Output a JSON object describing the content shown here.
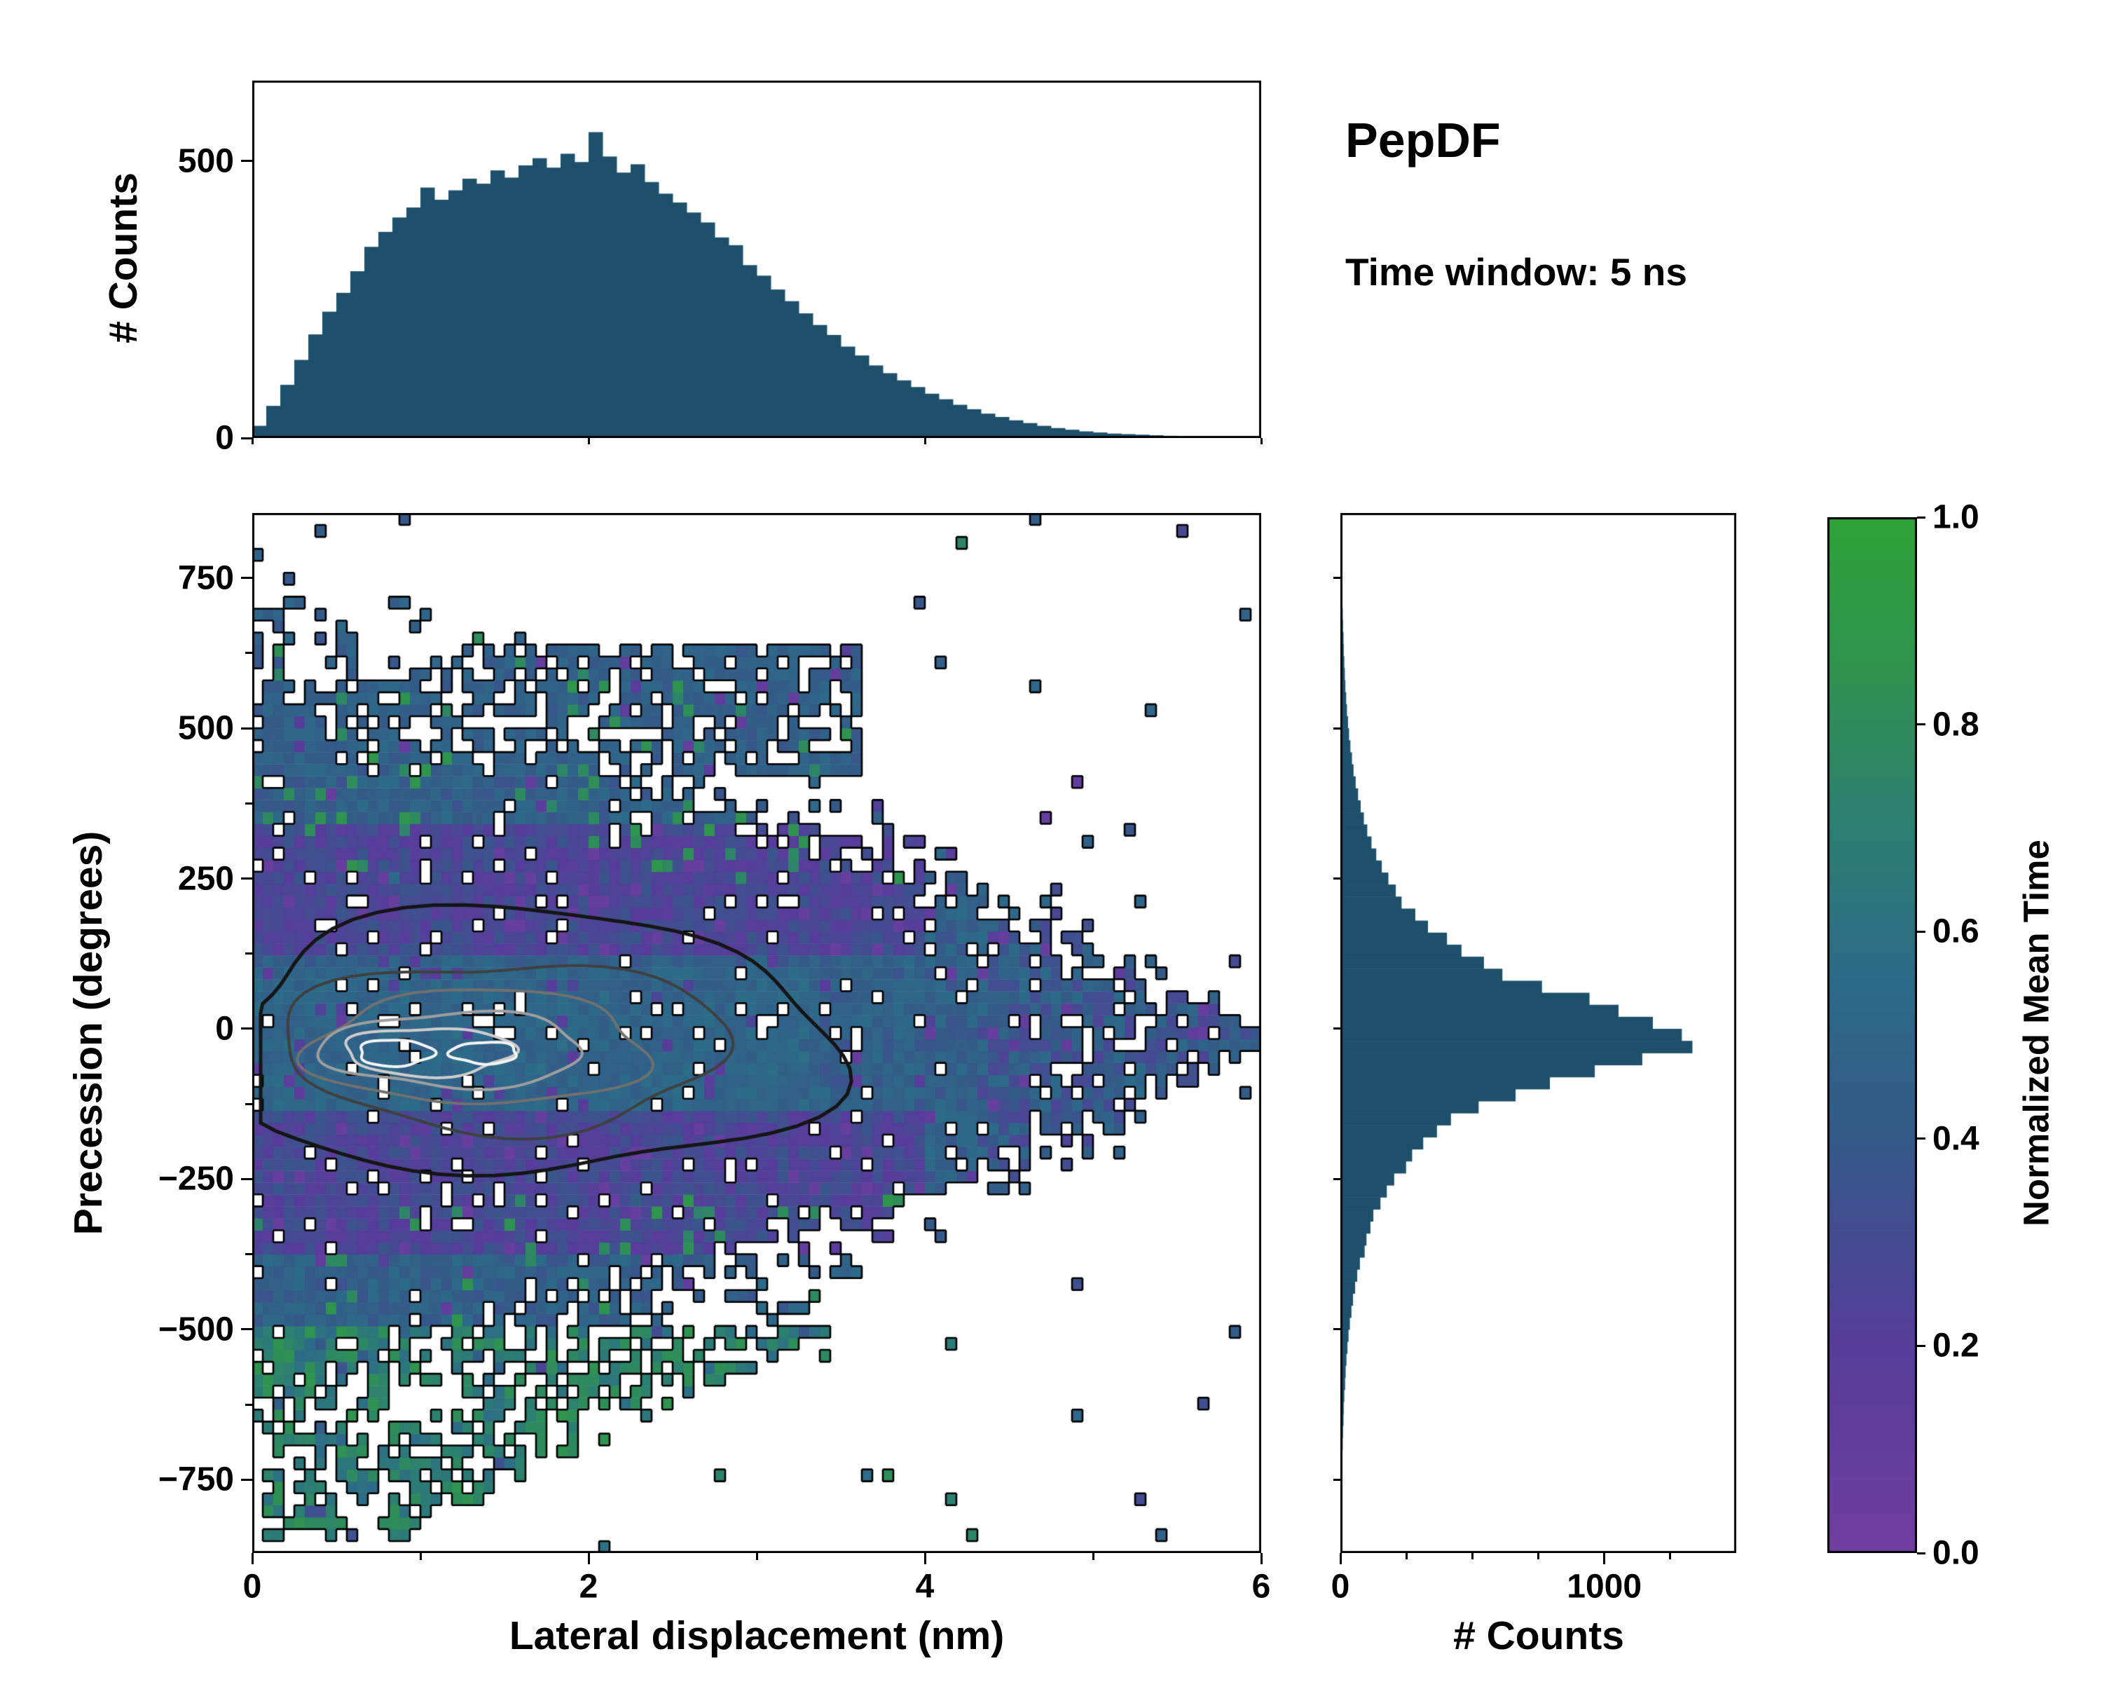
{
  "chart_data": {
    "type": "2d-histogram-with-marginals",
    "title": "PepDF",
    "subtitle": "Time window: 5 ns",
    "main": {
      "type": "heatmap",
      "xlabel": "Lateral displacement (nm)",
      "ylabel": "Precession (degrees)",
      "xlim": [
        0,
        6
      ],
      "ylim": [
        -872,
        858
      ],
      "xticks": [
        0,
        2,
        4,
        6
      ],
      "xticks_minor": [
        1,
        3,
        5
      ],
      "yticks": [
        750,
        500,
        250,
        0,
        -250,
        -500,
        -750
      ],
      "yticks_minor": [
        625,
        375,
        125,
        -125,
        -375,
        -625
      ],
      "nx": 96,
      "ny": 87,
      "value_label": "Normalized Mean Time",
      "distribution": {
        "x_tip": 5.95,
        "y_halfwidth_max": 640,
        "center_y": -15,
        "purple_band_center": 240,
        "purple_band_halfwidth": 110,
        "center_core_halfwidth": 120,
        "bottom_lobe": {
          "y_from": -845,
          "y_to": -500,
          "x_limit": 3.45
        },
        "top_lobe": {
          "y_from": 430,
          "y_to": 635,
          "x_from": 1.25,
          "x_to": 3.6
        }
      },
      "contours": {
        "colors": [
          "#151515",
          "#404040",
          "#707070",
          "#9e9e9e",
          "#cdcdcd",
          "#f4f4f4"
        ],
        "ellipses": [
          {
            "cx": 1.6,
            "cy": -25,
            "rx": 1.85,
            "ry": 220,
            "level": 0
          },
          {
            "cx": 1.5,
            "cy": -28,
            "rx": 1.32,
            "ry": 140,
            "level": 1
          },
          {
            "cx": 1.35,
            "cy": -32,
            "rx": 1.0,
            "ry": 95,
            "level": 2
          },
          {
            "cx": 1.2,
            "cy": -35,
            "rx": 0.78,
            "ry": 62,
            "level": 3
          },
          {
            "cx": 1.05,
            "cy": -38,
            "rx": 0.5,
            "ry": 40,
            "level": 4
          },
          {
            "cx": 0.85,
            "cy": -40,
            "rx": 0.22,
            "ry": 22,
            "level": 5
          },
          {
            "cx": 1.38,
            "cy": -40,
            "rx": 0.2,
            "ry": 18,
            "level": 5
          }
        ]
      }
    },
    "top_hist": {
      "type": "bar",
      "ylabel": "# Counts",
      "yticks": [
        0,
        500
      ],
      "ylim": [
        0,
        645
      ],
      "xlim": [
        0,
        6
      ],
      "xticks": [
        0,
        2,
        4,
        6
      ],
      "bar_color": "#1e506b",
      "bin_start": 0,
      "bin_width": 0.0833,
      "values": [
        22,
        58,
        96,
        141,
        187,
        228,
        262,
        301,
        345,
        372,
        398,
        416,
        452,
        430,
        447,
        468,
        459,
        483,
        470,
        492,
        505,
        488,
        513,
        498,
        552,
        508,
        479,
        494,
        462,
        441,
        425,
        407,
        389,
        362,
        348,
        312,
        293,
        268,
        247,
        225,
        204,
        186,
        165,
        149,
        131,
        117,
        104,
        92,
        80,
        70,
        60,
        52,
        44,
        38,
        32,
        27,
        22,
        18,
        15,
        12,
        10,
        8,
        7,
        6,
        5,
        4,
        3,
        3,
        2,
        2,
        1,
        1
      ]
    },
    "right_hist": {
      "type": "barh",
      "xlabel": "# Counts",
      "xticks": [
        0,
        1000
      ],
      "xticks_minor": [
        250,
        500,
        750,
        1250
      ],
      "xlim": [
        0,
        1500
      ],
      "ylim": [
        -872,
        858
      ],
      "bar_color": "#1e506b",
      "bin_start": -780,
      "bin_width": 20,
      "values": [
        2,
        3,
        3,
        4,
        5,
        6,
        8,
        9,
        11,
        14,
        16,
        19,
        23,
        27,
        32,
        38,
        44,
        52,
        60,
        70,
        88,
        95,
        110,
        121,
        148,
        172,
        200,
        245,
        268,
        310,
        362,
        415,
        520,
        660,
        790,
        960,
        1140,
        1330,
        1290,
        1180,
        1050,
        940,
        760,
        610,
        540,
        455,
        400,
        328,
        280,
        228,
        206,
        178,
        153,
        132,
        114,
        98,
        85,
        73,
        63,
        54,
        46,
        40,
        34,
        29,
        25,
        21,
        18,
        15,
        13,
        11,
        9,
        8,
        6,
        5,
        4,
        3,
        3,
        2
      ]
    },
    "colorbar": {
      "label": "Normalized Mean Time",
      "ticks": [
        1.0,
        0.8,
        0.6,
        0.4,
        0.2,
        0.0
      ],
      "range": [
        0,
        1
      ],
      "stops": [
        [
          0.0,
          "#713e9f"
        ],
        [
          0.2,
          "#563d9b"
        ],
        [
          0.4,
          "#345a88"
        ],
        [
          0.55,
          "#2d6a89"
        ],
        [
          0.7,
          "#2c7f72"
        ],
        [
          0.85,
          "#2f9350"
        ],
        [
          1.0,
          "#2fa238"
        ]
      ]
    }
  }
}
